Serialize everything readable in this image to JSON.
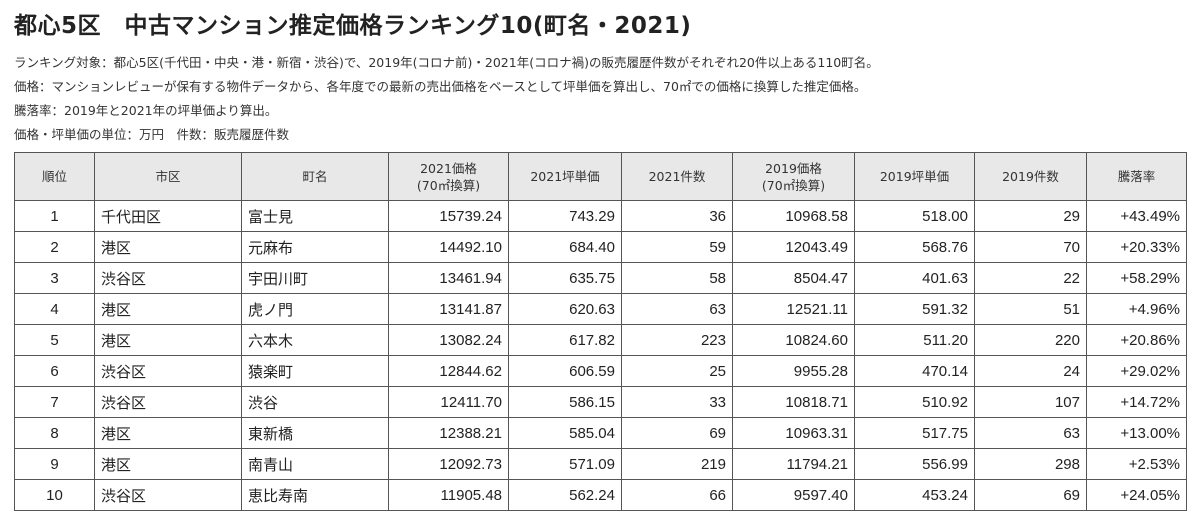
{
  "title": "都心5区　中古マンション推定価格ランキング10(町名・2021)",
  "notes": [
    "ランキング対象：都心5区(千代田・中央・港・新宿・渋谷)で、2019年(コロナ前)・2021年(コロナ禍)の販売履歴件数がそれぞれ20件以上ある110町名。",
    "価格：マンションレビューが保有する物件データから、各年度での最新の売出価格をベースとして坪単価を算出し、70㎡での価格に換算した推定価格。",
    "騰落率：2019年と2021年の坪単価より算出。",
    "価格・坪単価の単位：万円　件数：販売履歴件数"
  ],
  "table": {
    "headers": [
      {
        "line1": "順位",
        "line2": ""
      },
      {
        "line1": "市区",
        "line2": ""
      },
      {
        "line1": "町名",
        "line2": ""
      },
      {
        "line1": "2021価格",
        "line2": "(70㎡換算)"
      },
      {
        "line1": "2021坪単価",
        "line2": ""
      },
      {
        "line1": "2021件数",
        "line2": ""
      },
      {
        "line1": "2019価格",
        "line2": "(70㎡換算)"
      },
      {
        "line1": "2019坪単価",
        "line2": ""
      },
      {
        "line1": "2019件数",
        "line2": ""
      },
      {
        "line1": "騰落率",
        "line2": ""
      }
    ],
    "rows": [
      [
        "1",
        "千代田区",
        "富士見",
        "15739.24",
        "743.29",
        "36",
        "10968.58",
        "518.00",
        "29",
        "+43.49%"
      ],
      [
        "2",
        "港区",
        "元麻布",
        "14492.10",
        "684.40",
        "59",
        "12043.49",
        "568.76",
        "70",
        "+20.33%"
      ],
      [
        "3",
        "渋谷区",
        "宇田川町",
        "13461.94",
        "635.75",
        "58",
        "8504.47",
        "401.63",
        "22",
        "+58.29%"
      ],
      [
        "4",
        "港区",
        "虎ノ門",
        "13141.87",
        "620.63",
        "63",
        "12521.11",
        "591.32",
        "51",
        "+4.96%"
      ],
      [
        "5",
        "港区",
        "六本木",
        "13082.24",
        "617.82",
        "223",
        "10824.60",
        "511.20",
        "220",
        "+20.86%"
      ],
      [
        "6",
        "渋谷区",
        "猿楽町",
        "12844.62",
        "606.59",
        "25",
        "9955.28",
        "470.14",
        "24",
        "+29.02%"
      ],
      [
        "7",
        "渋谷区",
        "渋谷",
        "12411.70",
        "586.15",
        "33",
        "10818.71",
        "510.92",
        "107",
        "+14.72%"
      ],
      [
        "8",
        "港区",
        "東新橋",
        "12388.21",
        "585.04",
        "69",
        "10963.31",
        "517.75",
        "63",
        "+13.00%"
      ],
      [
        "9",
        "港区",
        "南青山",
        "12092.73",
        "571.09",
        "219",
        "11794.21",
        "556.99",
        "298",
        "+2.53%"
      ],
      [
        "10",
        "渋谷区",
        "恵比寿南",
        "11905.48",
        "562.24",
        "66",
        "9597.40",
        "453.24",
        "69",
        "+24.05%"
      ]
    ]
  }
}
